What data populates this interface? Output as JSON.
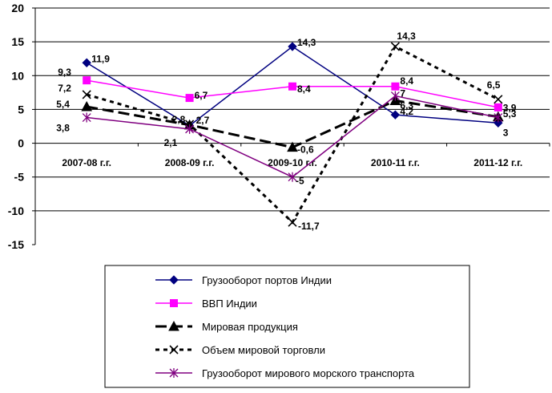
{
  "chart_data": {
    "type": "line",
    "categories": [
      "2007-08 г.г.",
      "2008-09 г.г.",
      "2009-10 г.г.",
      "2010-11 г.г.",
      "2011-12 г.г."
    ],
    "ylim": [
      -15,
      20
    ],
    "yticks": [
      "20",
      "15",
      "10",
      "5",
      "0",
      "-5",
      "-10",
      "-15"
    ],
    "grid": "horizontal",
    "legend_position": "bottom",
    "series": [
      {
        "name": "Грузооборот портов Индии",
        "values": [
          11.9,
          2.6,
          14.3,
          4.2,
          3
        ],
        "labels": [
          "11,9",
          "",
          "14,3",
          "4,2",
          "3"
        ],
        "color": "#000080",
        "marker": "diamond",
        "dash": "solid"
      },
      {
        "name": "ВВП Индии",
        "values": [
          9.3,
          6.7,
          8.4,
          8.4,
          5.3
        ],
        "labels": [
          "9,3",
          "6,7",
          "8,4",
          "8,4",
          "5,3"
        ],
        "color": "#ff00ff",
        "marker": "square",
        "dash": "solid"
      },
      {
        "name": "Мировая продукция",
        "values": [
          5.4,
          2.7,
          -0.6,
          6.3,
          3.9
        ],
        "labels": [
          "5,4",
          "2,7",
          "-0,6",
          "6,3",
          "3,9"
        ],
        "color": "#000000",
        "marker": "triangle",
        "dash": "longdash"
      },
      {
        "name": "Объем мировой торговли",
        "values": [
          7.2,
          2.8,
          -11.7,
          14.3,
          6.5
        ],
        "labels": [
          "7,2",
          "2,8",
          "-11,7",
          "14,3",
          "6,5"
        ],
        "color": "#000000",
        "marker": "x",
        "dash": "shortdash"
      },
      {
        "name": "Грузооборот мирового морского транспорта",
        "values": [
          3.8,
          2.1,
          -5,
          7,
          3.8
        ],
        "labels": [
          "3,8",
          "2,1",
          "-5",
          "7",
          ""
        ],
        "color": "#800080",
        "marker": "asterisk",
        "dash": "solid"
      }
    ]
  }
}
